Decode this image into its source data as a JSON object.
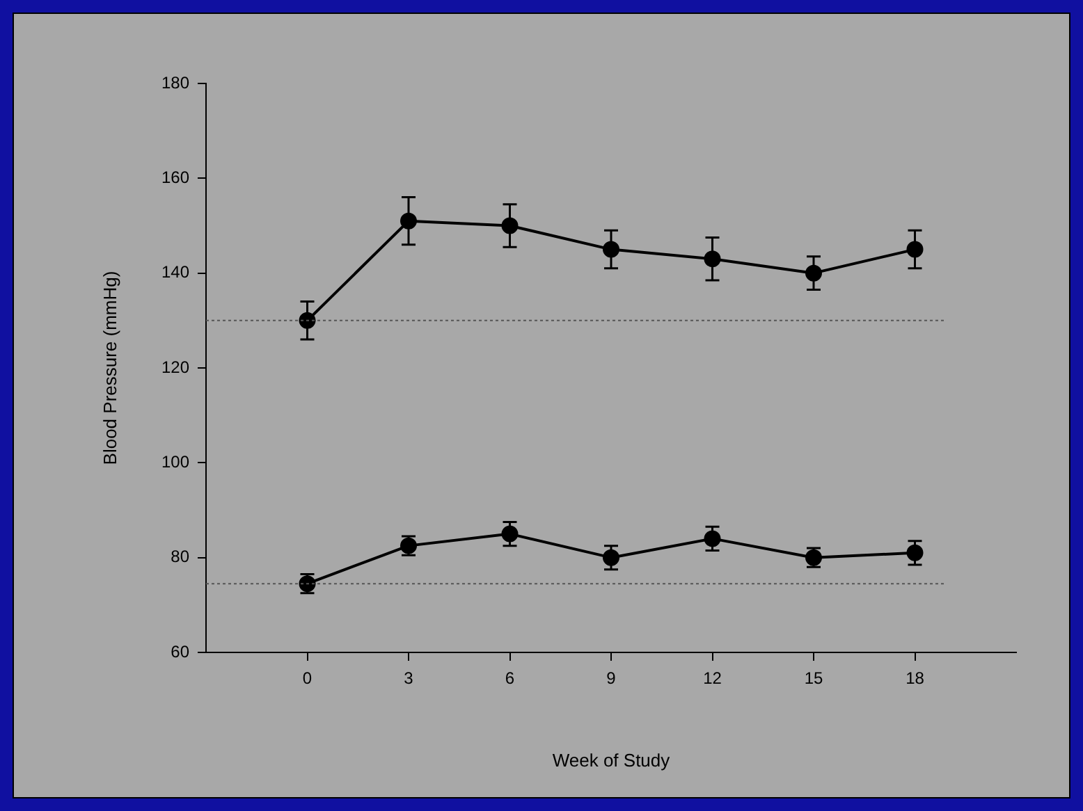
{
  "chart_data": {
    "type": "line",
    "xlabel": "Week of Study",
    "ylabel": "Blood Pressure (mmHg)",
    "x": [
      0,
      3,
      6,
      9,
      12,
      15,
      18
    ],
    "xlim": [
      -3,
      21
    ],
    "xticks": [
      0,
      3,
      6,
      9,
      12,
      15,
      18
    ],
    "ylim": [
      60,
      180
    ],
    "yticks": [
      60,
      80,
      100,
      120,
      140,
      160,
      180
    ],
    "marker": "circle",
    "line_style": "solid",
    "grid": false,
    "legend": false,
    "series": [
      {
        "color": "#000000",
        "values": [
          130,
          151,
          150,
          145,
          143,
          140,
          145
        ],
        "errors": [
          4,
          5,
          4.5,
          4,
          4.5,
          3.5,
          4
        ]
      },
      {
        "color": "#000000",
        "values": [
          74.5,
          82.5,
          85,
          80,
          84,
          80,
          81
        ],
        "errors": [
          2,
          2,
          2.5,
          2.5,
          2.5,
          2,
          2.5
        ]
      }
    ],
    "ref_lines": [
      {
        "axis": "y",
        "value": 130,
        "color": "#555555",
        "line_style": "dotted"
      },
      {
        "axis": "y",
        "value": 74.5,
        "color": "#555555",
        "line_style": "dotted"
      }
    ]
  }
}
